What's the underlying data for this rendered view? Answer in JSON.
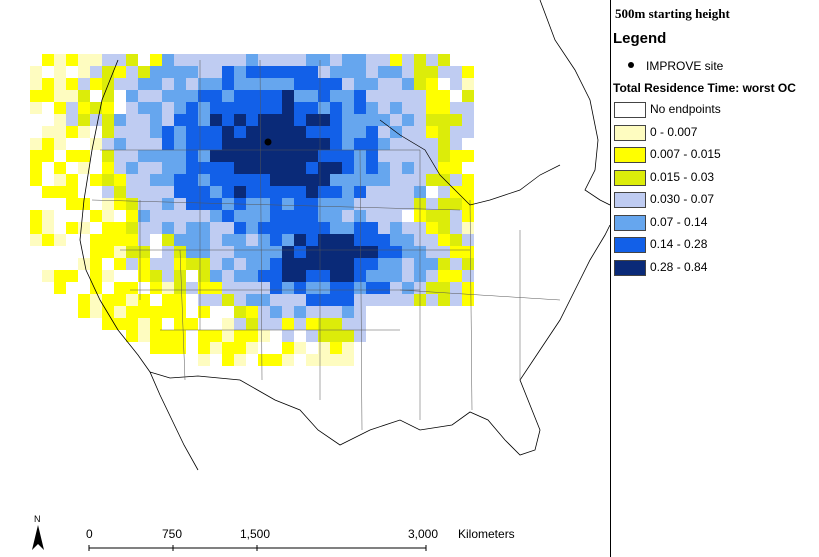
{
  "figure": {
    "height_title": "500m starting height"
  },
  "legend": {
    "heading": "Legend",
    "site_label": "IMPROVE site",
    "residence_title": "Total Residence Time: worst OC",
    "classes": [
      {
        "label": "No endpoints",
        "color": "#ffffff"
      },
      {
        "label": "0 - 0.007",
        "color": "#fefcc0"
      },
      {
        "label": "0.007 - 0.015",
        "color": "#ffff00"
      },
      {
        "label": "0.015 - 0.03",
        "color": "#dcec0a"
      },
      {
        "label": "0.030 - 0.07",
        "color": "#bfccf2"
      },
      {
        "label": "0.07 - 0.14",
        "color": "#66a6ee"
      },
      {
        "label": "0.14 - 0.28",
        "color": "#1260e8"
      },
      {
        "label": "0.28 - 0.84",
        "color": "#0a2a78"
      }
    ]
  },
  "scale_bar": {
    "ticks": [
      "0",
      "750",
      "1,500",
      "3,000"
    ],
    "unit": "Kilometers",
    "north_label": "N"
  },
  "map_colors": {
    "land_outline": "#000000",
    "state_lines": "#555555"
  }
}
